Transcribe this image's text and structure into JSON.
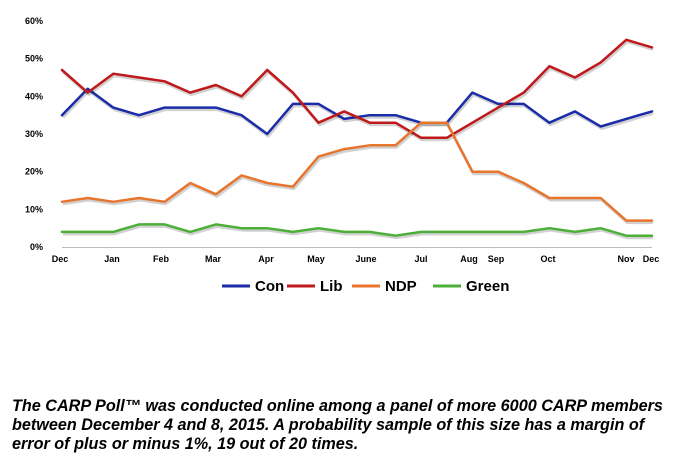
{
  "chart_data": {
    "type": "line",
    "ylim": [
      0,
      60
    ],
    "y_ticks": [
      "0%",
      "10%",
      "20%",
      "30%",
      "40%",
      "50%",
      "60%"
    ],
    "y_tick_values": [
      0,
      10,
      20,
      30,
      40,
      50,
      60
    ],
    "x_labels": [
      "Dec",
      "Jan",
      "Feb",
      "Mar",
      "Apr",
      "May",
      "June",
      "Jul",
      "Aug",
      "Sep",
      "Oct",
      "Nov",
      "Dec"
    ],
    "grid": false,
    "legend_position": "bottom",
    "series": [
      {
        "name": "Con",
        "color": "#1a2ca8",
        "values": [
          35,
          42,
          37,
          35,
          37,
          37,
          37,
          35,
          30,
          38,
          38,
          34,
          35,
          35,
          33,
          33,
          41,
          38,
          38,
          33,
          36,
          32,
          34,
          36
        ]
      },
      {
        "name": "Lib",
        "color": "#c0191c",
        "values": [
          47,
          41,
          46,
          45,
          44,
          41,
          43,
          40,
          47,
          41,
          33,
          36,
          33,
          33,
          29,
          29,
          33,
          37,
          41,
          48,
          45,
          49,
          55,
          53
        ]
      },
      {
        "name": "NDP",
        "color": "#e8742e",
        "values": [
          12,
          13,
          12,
          13,
          12,
          17,
          14,
          19,
          17,
          16,
          24,
          26,
          27,
          27,
          33,
          33,
          20,
          20,
          17,
          13,
          13,
          13,
          7,
          7
        ]
      },
      {
        "name": "Green",
        "color": "#4caf38",
        "values": [
          4,
          4,
          4,
          6,
          6,
          4,
          6,
          5,
          5,
          4,
          5,
          4,
          4,
          3,
          4,
          4,
          4,
          4,
          4,
          5,
          4,
          5,
          3,
          3
        ]
      }
    ]
  },
  "caption": "The CARP Poll™ was conducted online among a panel of more 6000 CARP members between December 4 and 8, 2015. A probability sample of this size has a margin of error of plus or minus 1%, 19 out of 20 times."
}
